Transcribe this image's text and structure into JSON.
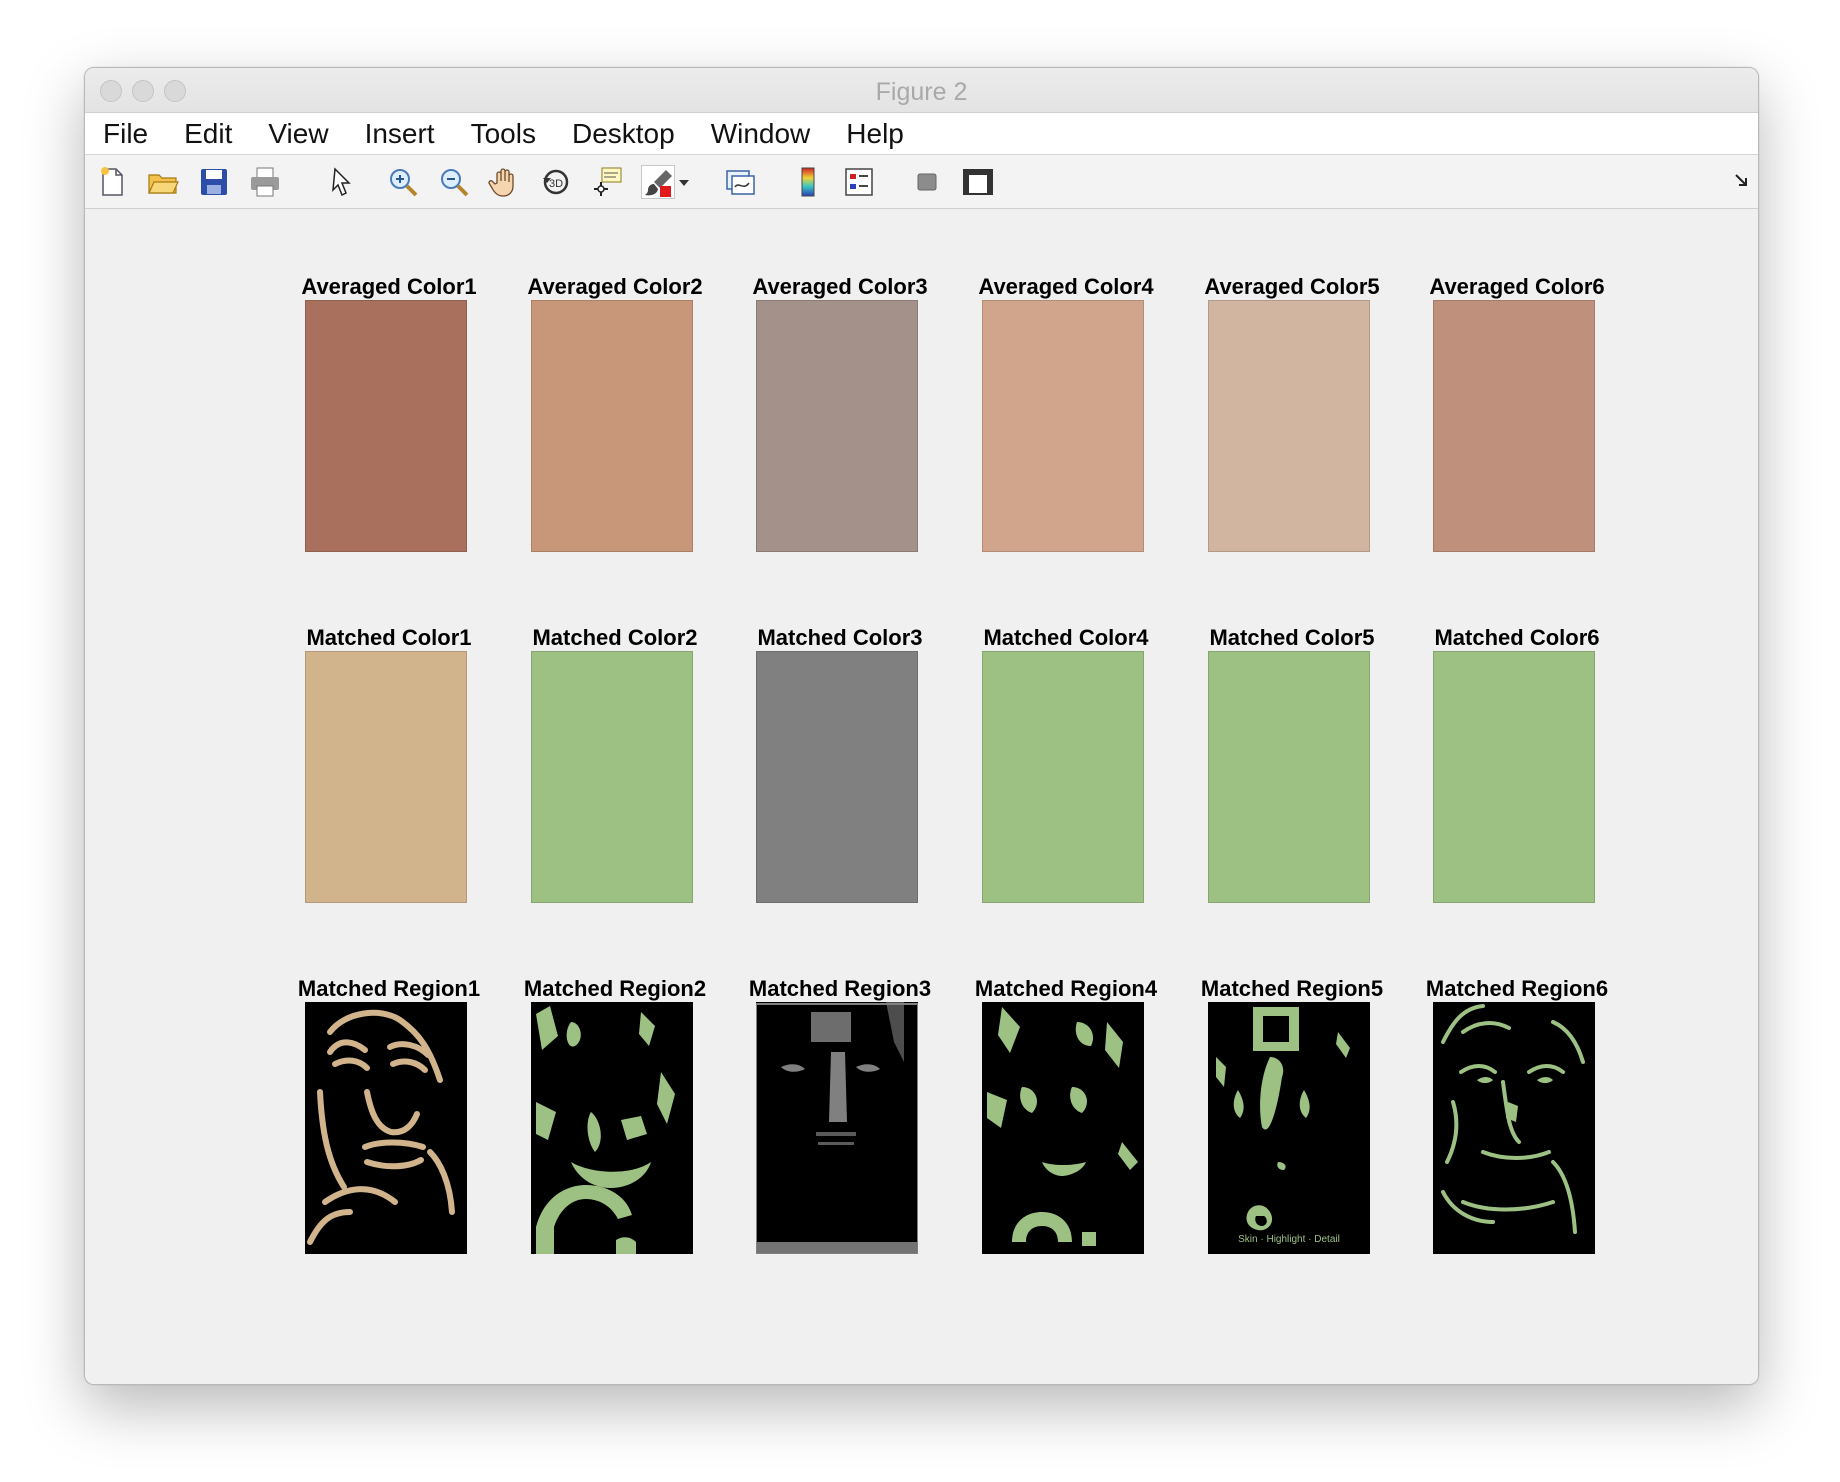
{
  "window": {
    "title": "Figure 2"
  },
  "menu": [
    "File",
    "Edit",
    "View",
    "Insert",
    "Tools",
    "Desktop",
    "Window",
    "Help"
  ],
  "toolbar": {
    "icons": [
      "new-figure-icon",
      "open-file-icon",
      "save-icon",
      "print-icon",
      "pointer-icon",
      "zoom-in-icon",
      "zoom-out-icon",
      "pan-hand-icon",
      "rotate-3d-icon",
      "data-cursor-icon",
      "brush-icon",
      "brush-dropdown-icon",
      "link-plot-icon",
      "colorbar-icon",
      "legend-icon",
      "hide-plot-tools-icon",
      "show-plot-tools-icon",
      "dock-icon"
    ]
  },
  "rows": {
    "averaged": {
      "titles": [
        "Averaged Color1",
        "Averaged Color2",
        "Averaged Color3",
        "Averaged Color4",
        "Averaged Color5",
        "Averaged Color6"
      ],
      "colors": [
        "#a8705d",
        "#c8977a",
        "#a4918a",
        "#d1a58c",
        "#d2b5a0",
        "#bf917d"
      ]
    },
    "matched": {
      "titles": [
        "Matched Color1",
        "Matched Color2",
        "Matched Color3",
        "Matched Color4",
        "Matched Color5",
        "Matched Color6"
      ],
      "colors": [
        "#d2b48c",
        "#9dc183",
        "#808080",
        "#9dc183",
        "#9dc183",
        "#9dc183"
      ]
    },
    "regions": {
      "titles": [
        "Matched Region1",
        "Matched Region2",
        "Matched Region3",
        "Matched Region4",
        "Matched Region5",
        "Matched Region6"
      ],
      "colors": [
        "#d2b48c",
        "#9dc183",
        "#808080",
        "#9dc183",
        "#9dc183",
        "#9dc183"
      ],
      "region5_caption": "Skin · Highlight · Detail"
    }
  }
}
